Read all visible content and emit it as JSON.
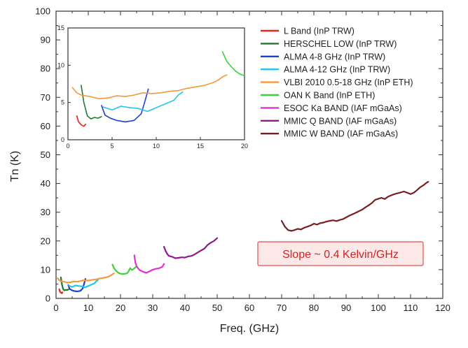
{
  "chart_data": {
    "type": "line",
    "xlabel": "Freq. (GHz)",
    "ylabel": "Tn (K)",
    "xlim": [
      0,
      120
    ],
    "ylim": [
      0,
      100
    ],
    "xticks": [
      "0",
      "10",
      "20",
      "30",
      "40",
      "50",
      "60",
      "70",
      "80",
      "90",
      "100",
      "110",
      "120"
    ],
    "yticks": [
      "0",
      "10",
      "20",
      "30",
      "40",
      "50",
      "60",
      "70",
      "80",
      "90",
      "100"
    ],
    "annotation": "Slope ~ 0.4 Kelvin/GHz",
    "legend_position": "top-right",
    "series": [
      {
        "name": "L Band (InP TRW)",
        "color": "#e8231a",
        "points": [
          [
            1.0,
            3.2
          ],
          [
            1.2,
            2.4
          ],
          [
            1.5,
            2.0
          ],
          [
            1.8,
            1.8
          ],
          [
            2.0,
            2.1
          ]
        ]
      },
      {
        "name": "HERSCHEL LOW (InP TRW)",
        "color": "#1f7a2e",
        "points": [
          [
            1.5,
            7.3
          ],
          [
            1.8,
            5.0
          ],
          [
            2.2,
            3.2
          ],
          [
            2.6,
            2.8
          ],
          [
            3.0,
            3.0
          ],
          [
            3.4,
            2.9
          ],
          [
            3.8,
            3.1
          ]
        ]
      },
      {
        "name": "ALMA 4-8 GHz (InP TRW)",
        "color": "#1c3fd4",
        "points": [
          [
            3.8,
            4.6
          ],
          [
            4.2,
            3.3
          ],
          [
            4.8,
            2.9
          ],
          [
            5.5,
            2.6
          ],
          [
            6.5,
            2.4
          ],
          [
            7.5,
            2.6
          ],
          [
            8.3,
            3.5
          ],
          [
            8.8,
            5.5
          ],
          [
            9.1,
            6.8
          ]
        ]
      },
      {
        "name": "ALMA 4-12 GHz (InP TRW)",
        "color": "#1ec8e6",
        "points": [
          [
            4.0,
            4.4
          ],
          [
            5.0,
            4.0
          ],
          [
            6.0,
            4.5
          ],
          [
            7.0,
            4.3
          ],
          [
            8.0,
            4.2
          ],
          [
            9.0,
            3.8
          ],
          [
            10.0,
            4.3
          ],
          [
            11.0,
            4.8
          ],
          [
            12.0,
            5.3
          ],
          [
            12.5,
            6.0
          ],
          [
            13.0,
            6.4
          ]
        ]
      },
      {
        "name": "VLBI 2010 0.5-18 GHz (InP ETH)",
        "color": "#f39a3c",
        "points": [
          [
            0.5,
            7.0
          ],
          [
            1.0,
            6.3
          ],
          [
            1.5,
            6.0
          ],
          [
            2.5,
            5.8
          ],
          [
            3.5,
            5.5
          ],
          [
            4.5,
            5.6
          ],
          [
            5.5,
            5.9
          ],
          [
            6.5,
            5.8
          ],
          [
            7.5,
            6.0
          ],
          [
            8.5,
            6.3
          ],
          [
            9.5,
            6.2
          ],
          [
            10.5,
            6.3
          ],
          [
            11.5,
            6.5
          ],
          [
            12.5,
            6.6
          ],
          [
            13.5,
            6.9
          ],
          [
            14.5,
            7.1
          ],
          [
            15.5,
            7.3
          ],
          [
            16.5,
            7.7
          ],
          [
            17.0,
            8.0
          ],
          [
            17.6,
            8.5
          ],
          [
            18.0,
            8.7
          ]
        ]
      },
      {
        "name": "OAN K Band (InP ETH)",
        "color": "#3ed23a",
        "points": [
          [
            17.5,
            11.8
          ],
          [
            18.0,
            10.5
          ],
          [
            18.5,
            9.8
          ],
          [
            19.0,
            9.2
          ],
          [
            19.5,
            8.8
          ],
          [
            20.0,
            8.6
          ],
          [
            21.0,
            8.5
          ],
          [
            22.0,
            8.7
          ],
          [
            22.5,
            9.4
          ],
          [
            23.0,
            10.5
          ],
          [
            23.5,
            9.9
          ],
          [
            24.0,
            10.2
          ],
          [
            24.5,
            10.7
          ],
          [
            25.0,
            11.0
          ]
        ]
      },
      {
        "name": "ESOC Ka BAND (IAF mGaAs)",
        "color": "#e62fd0",
        "points": [
          [
            24.3,
            15.0
          ],
          [
            24.6,
            12.5
          ],
          [
            25.0,
            11.2
          ],
          [
            25.5,
            10.4
          ],
          [
            26.0,
            9.8
          ],
          [
            27.0,
            9.3
          ],
          [
            28.0,
            8.9
          ],
          [
            29.0,
            9.4
          ],
          [
            30.0,
            10.0
          ],
          [
            31.0,
            10.3
          ],
          [
            32.0,
            10.5
          ],
          [
            33.0,
            11.0
          ],
          [
            33.5,
            12.0
          ]
        ]
      },
      {
        "name": "MMIC Q BAND (IAF mGaAs)",
        "color": "#8e1a8e",
        "points": [
          [
            33.5,
            18.0
          ],
          [
            34.0,
            16.5
          ],
          [
            34.5,
            15.5
          ],
          [
            35.0,
            14.8
          ],
          [
            36.0,
            14.5
          ],
          [
            37.0,
            14.0
          ],
          [
            38.0,
            14.1
          ],
          [
            39.0,
            14.3
          ],
          [
            40.0,
            14.2
          ],
          [
            41.0,
            14.6
          ],
          [
            42.0,
            14.8
          ],
          [
            43.0,
            15.3
          ],
          [
            44.0,
            16.0
          ],
          [
            45.0,
            16.7
          ],
          [
            46.0,
            17.3
          ],
          [
            47.0,
            18.6
          ],
          [
            48.0,
            19.4
          ],
          [
            49.0,
            20.0
          ],
          [
            50.0,
            21.0
          ]
        ]
      },
      {
        "name": "MMIC W BAND (IAF mGaAs)",
        "color": "#7a1f1f",
        "points": [
          [
            70.0,
            27.0
          ],
          [
            71.0,
            25.0
          ],
          [
            72.0,
            23.8
          ],
          [
            73.0,
            23.5
          ],
          [
            74.0,
            23.8
          ],
          [
            75.0,
            24.2
          ],
          [
            76.0,
            24.0
          ],
          [
            77.0,
            24.6
          ],
          [
            78.0,
            25.0
          ],
          [
            79.0,
            25.4
          ],
          [
            80.0,
            26.0
          ],
          [
            81.0,
            25.7
          ],
          [
            82.0,
            26.2
          ],
          [
            83.0,
            26.4
          ],
          [
            84.0,
            26.8
          ],
          [
            85.0,
            27.0
          ],
          [
            86.0,
            27.2
          ],
          [
            87.0,
            26.9
          ],
          [
            88.0,
            27.3
          ],
          [
            89.0,
            27.6
          ],
          [
            90.0,
            28.2
          ],
          [
            91.0,
            28.8
          ],
          [
            92.0,
            29.3
          ],
          [
            93.0,
            29.8
          ],
          [
            94.0,
            30.4
          ],
          [
            95.0,
            30.9
          ],
          [
            96.0,
            31.7
          ],
          [
            97.0,
            32.4
          ],
          [
            98.0,
            33.2
          ],
          [
            99.0,
            34.3
          ],
          [
            100.0,
            34.7
          ],
          [
            101.0,
            35.0
          ],
          [
            102.0,
            34.6
          ],
          [
            103.0,
            35.4
          ],
          [
            104.0,
            35.9
          ],
          [
            105.0,
            36.3
          ],
          [
            106.0,
            36.6
          ],
          [
            107.0,
            36.9
          ],
          [
            108.0,
            37.2
          ],
          [
            109.0,
            36.8
          ],
          [
            110.0,
            36.3
          ],
          [
            111.0,
            36.8
          ],
          [
            112.0,
            37.7
          ],
          [
            113.0,
            38.7
          ],
          [
            114.0,
            39.4
          ],
          [
            115.0,
            40.3
          ],
          [
            115.5,
            40.6
          ]
        ]
      }
    ],
    "inset": {
      "xlim": [
        0,
        20
      ],
      "ylim": [
        0,
        15
      ],
      "xticks": [
        "0",
        "5",
        "10",
        "15",
        "20"
      ],
      "yticks": [
        "0",
        "5",
        "10",
        "15"
      ]
    }
  }
}
